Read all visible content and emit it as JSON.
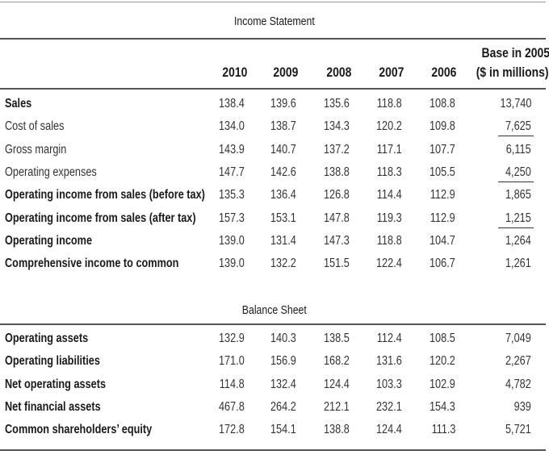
{
  "income_statement": {
    "title": "Income Statement",
    "columns": [
      "2010",
      "2009",
      "2008",
      "2007",
      "2006"
    ],
    "base_header_line1": "Base in 2005",
    "base_header_line2": "($ in millions)",
    "rows": [
      {
        "label": "Sales",
        "values": [
          "138.4",
          "139.6",
          "135.6",
          "118.8",
          "108.8"
        ],
        "base": "13,740"
      },
      {
        "label": "Cost of sales",
        "values": [
          "134.0",
          "138.7",
          "134.3",
          "120.2",
          "109.8"
        ],
        "base": "7,625"
      },
      {
        "label": "Gross margin",
        "values": [
          "143.9",
          "140.7",
          "137.2",
          "117.1",
          "107.7"
        ],
        "base": "6,115"
      },
      {
        "label": "Operating expenses",
        "values": [
          "147.7",
          "142.6",
          "138.8",
          "118.3",
          "105.5"
        ],
        "base": "4,250"
      },
      {
        "label": "Operating income from sales (before tax)",
        "values": [
          "135.3",
          "136.4",
          "126.8",
          "114.4",
          "112.9"
        ],
        "base": "1,865"
      },
      {
        "label": "Operating income from sales (after tax)",
        "values": [
          "157.3",
          "153.1",
          "147.8",
          "119.3",
          "112.9"
        ],
        "base": "1,215"
      },
      {
        "label": "Operating income",
        "values": [
          "139.0",
          "131.4",
          "147.3",
          "118.8",
          "104.7"
        ],
        "base": "1,264"
      },
      {
        "label": "Comprehensive income to common",
        "values": [
          "139.0",
          "132.2",
          "151.5",
          "122.4",
          "106.7"
        ],
        "base": "1,261"
      }
    ]
  },
  "balance_sheet": {
    "title": "Balance Sheet",
    "rows": [
      {
        "label": "Operating assets",
        "values": [
          "132.9",
          "140.3",
          "138.5",
          "112.4",
          "108.5"
        ],
        "base": "7,049"
      },
      {
        "label": "Operating liabilities",
        "values": [
          "171.0",
          "156.9",
          "168.2",
          "131.6",
          "120.2"
        ],
        "base": "2,267"
      },
      {
        "label": "Net operating assets",
        "values": [
          "114.8",
          "132.4",
          "124.4",
          "103.3",
          "102.9"
        ],
        "base": "4,782"
      },
      {
        "label": "Net financial assets",
        "values": [
          "467.8",
          "264.2",
          "212.1",
          "232.1",
          "154.3"
        ],
        "base": "939"
      },
      {
        "label": "Common shareholders’ equity",
        "values": [
          "172.8",
          "154.1",
          "138.8",
          "124.4",
          "111.3"
        ],
        "base": "5,721"
      }
    ]
  }
}
